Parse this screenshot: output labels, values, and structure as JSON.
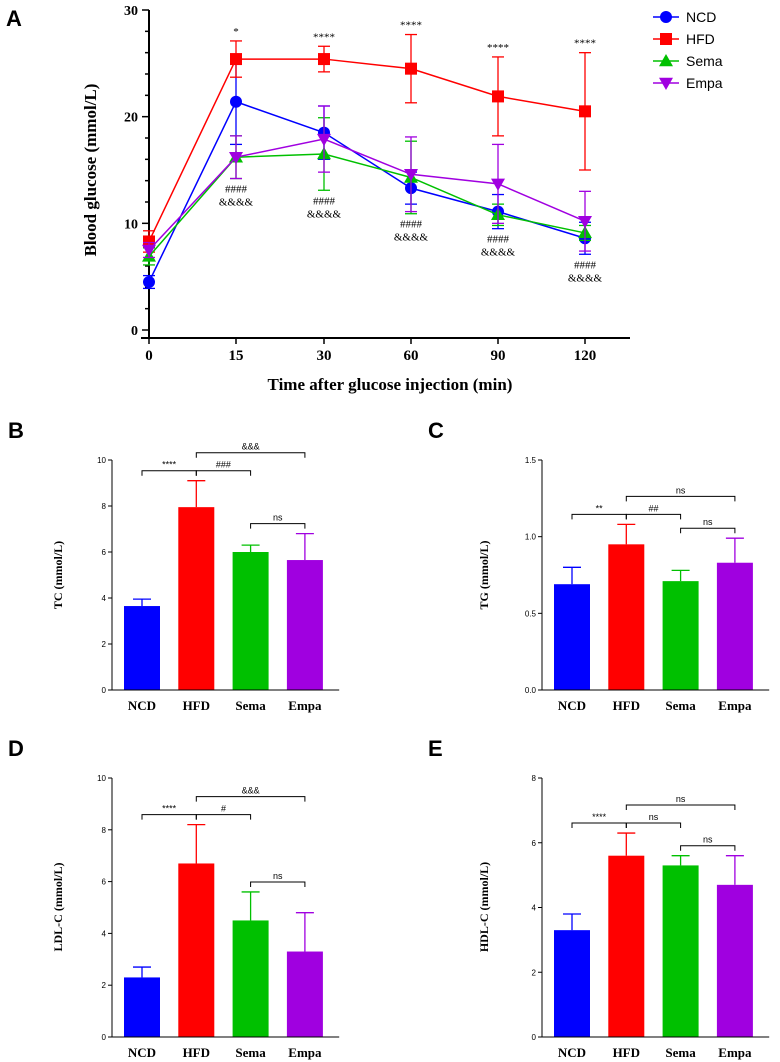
{
  "colors": {
    "ncd": "#0000ff",
    "hfd": "#ff0000",
    "sema": "#00c000",
    "empa": "#a000e0",
    "axis": "#000000"
  },
  "chart_data": [
    {
      "id": "A",
      "panel_label": "A",
      "type": "line",
      "xlabel": "Time after glucose injection (min)",
      "ylabel": "Blood glucose (mmol/L)",
      "x": [
        "0",
        "15",
        "30",
        "60",
        "90",
        "120"
      ],
      "ylim": [
        0,
        30
      ],
      "yticks": [
        "0",
        "10",
        "20",
        "30"
      ],
      "series": [
        {
          "name": "NCD",
          "color": "#0000ff",
          "marker": "circle",
          "values": [
            4.5,
            21.4,
            18.5,
            13.3,
            11.1,
            8.6
          ],
          "err": [
            0.6,
            4.0,
            2.5,
            1.5,
            1.6,
            1.5
          ]
        },
        {
          "name": "HFD",
          "color": "#ff0000",
          "marker": "square",
          "values": [
            8.3,
            25.4,
            25.4,
            24.5,
            21.9,
            20.5
          ],
          "err": [
            1.0,
            1.7,
            1.2,
            3.2,
            3.7,
            5.5
          ]
        },
        {
          "name": "Sema",
          "color": "#00c000",
          "marker": "triangle",
          "values": [
            6.9,
            16.2,
            16.5,
            14.3,
            10.8,
            9.1
          ],
          "err": [
            0.8,
            2.0,
            3.4,
            3.4,
            1.0,
            0.7
          ]
        },
        {
          "name": "Empa",
          "color": "#a000e0",
          "marker": "triangle-down",
          "values": [
            7.5,
            16.2,
            17.9,
            14.6,
            13.7,
            10.2
          ],
          "err": [
            0.7,
            2.0,
            3.1,
            3.5,
            3.7,
            2.8
          ]
        }
      ],
      "annotations": [
        {
          "x": "15",
          "label": "*",
          "row": "top"
        },
        {
          "x": "30",
          "label": "****",
          "row": "top"
        },
        {
          "x": "60",
          "label": "****",
          "row": "top"
        },
        {
          "x": "90",
          "label": "****",
          "row": "top"
        },
        {
          "x": "120",
          "label": "****",
          "row": "top"
        },
        {
          "x": "15",
          "label": "####",
          "row": "hash"
        },
        {
          "x": "15",
          "label": "&&&&",
          "row": "amp"
        },
        {
          "x": "30",
          "label": "####",
          "row": "hash"
        },
        {
          "x": "30",
          "label": "&&&&",
          "row": "amp"
        },
        {
          "x": "60",
          "label": "####",
          "row": "hash"
        },
        {
          "x": "60",
          "label": "&&&&",
          "row": "amp"
        },
        {
          "x": "90",
          "label": "####",
          "row": "hash"
        },
        {
          "x": "90",
          "label": "&&&&",
          "row": "amp"
        },
        {
          "x": "120",
          "label": "####",
          "row": "hash"
        },
        {
          "x": "120",
          "label": "&&&&",
          "row": "amp"
        }
      ],
      "legend": "top-right"
    },
    {
      "id": "B",
      "panel_label": "B",
      "type": "bar",
      "ylabel": "TC (mmol/L)",
      "categories": [
        "NCD",
        "HFD",
        "Sema",
        "Empa"
      ],
      "values": [
        3.65,
        7.95,
        6.0,
        5.65
      ],
      "err": [
        0.3,
        1.15,
        0.3,
        1.15
      ],
      "ylim": [
        0,
        10
      ],
      "yticks": [
        "0",
        "2",
        "4",
        "6",
        "8",
        "10"
      ],
      "brackets": [
        {
          "from": 0,
          "to": 1,
          "label": "****",
          "level": 0
        },
        {
          "from": 1,
          "to": 2,
          "label": "###",
          "level": 0
        },
        {
          "from": 1,
          "to": 3,
          "label": "&&&",
          "level": 1
        },
        {
          "from": 2,
          "to": 3,
          "label": "ns",
          "level": 0
        }
      ]
    },
    {
      "id": "C",
      "panel_label": "C",
      "type": "bar",
      "ylabel": "TG (mmol/L)",
      "categories": [
        "NCD",
        "HFD",
        "Sema",
        "Empa"
      ],
      "values": [
        0.69,
        0.95,
        0.71,
        0.83
      ],
      "err": [
        0.11,
        0.13,
        0.07,
        0.16
      ],
      "ylim": [
        0,
        1.5
      ],
      "yticks": [
        "0.0",
        "0.5",
        "1.0",
        "1.5"
      ],
      "brackets": [
        {
          "from": 0,
          "to": 1,
          "label": "**",
          "level": 0
        },
        {
          "from": 1,
          "to": 2,
          "label": "##",
          "level": 0
        },
        {
          "from": 1,
          "to": 3,
          "label": "ns",
          "level": 1
        },
        {
          "from": 2,
          "to": 3,
          "label": "ns",
          "level": 0
        }
      ]
    },
    {
      "id": "D",
      "panel_label": "D",
      "type": "bar",
      "ylabel": "LDL-C (mmol/L)",
      "categories": [
        "NCD",
        "HFD",
        "Sema",
        "Empa"
      ],
      "values": [
        2.3,
        6.7,
        4.5,
        3.3
      ],
      "err": [
        0.4,
        1.5,
        1.1,
        1.5
      ],
      "ylim": [
        0,
        10
      ],
      "yticks": [
        "0",
        "2",
        "4",
        "6",
        "8",
        "10"
      ],
      "brackets": [
        {
          "from": 0,
          "to": 1,
          "label": "****",
          "level": 0
        },
        {
          "from": 1,
          "to": 2,
          "label": "#",
          "level": 0
        },
        {
          "from": 1,
          "to": 3,
          "label": "&&&",
          "level": 1
        },
        {
          "from": 2,
          "to": 3,
          "label": "ns",
          "level": 0
        }
      ]
    },
    {
      "id": "E",
      "panel_label": "E",
      "type": "bar",
      "ylabel": "HDL-C (mmol/L)",
      "categories": [
        "NCD",
        "HFD",
        "Sema",
        "Empa"
      ],
      "values": [
        3.3,
        5.6,
        5.3,
        4.7
      ],
      "err": [
        0.5,
        0.7,
        0.3,
        0.9
      ],
      "ylim": [
        0,
        8
      ],
      "yticks": [
        "0",
        "2",
        "4",
        "6",
        "8"
      ],
      "brackets": [
        {
          "from": 0,
          "to": 1,
          "label": "****",
          "level": 0
        },
        {
          "from": 1,
          "to": 2,
          "label": "ns",
          "level": 0
        },
        {
          "from": 1,
          "to": 3,
          "label": "ns",
          "level": 1
        },
        {
          "from": 2,
          "to": 3,
          "label": "ns",
          "level": 0
        }
      ]
    }
  ]
}
